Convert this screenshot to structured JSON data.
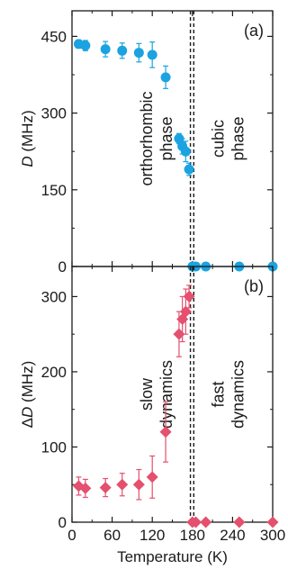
{
  "chart_data": [
    {
      "type": "scatter",
      "panel_label": "(a)",
      "xlabel": "",
      "ylabel_symbol": "D",
      "ylabel_unit": "(MHz)",
      "xlim": [
        0,
        300
      ],
      "ylim": [
        0,
        500
      ],
      "yticks": [
        0,
        150,
        300,
        450
      ],
      "marker": "circle",
      "color": "#1aa3e0",
      "series": [
        {
          "x": [
            10,
            20,
            50,
            75,
            100,
            120,
            140,
            160,
            165,
            170,
            175,
            180,
            185,
            200,
            250,
            300
          ],
          "y": [
            435,
            432,
            425,
            422,
            418,
            414,
            370,
            250,
            235,
            225,
            190,
            0,
            0,
            0,
            0,
            0
          ],
          "err": [
            8,
            10,
            15,
            15,
            18,
            25,
            22,
            10,
            15,
            20,
            12,
            0,
            0,
            0,
            0,
            0
          ]
        }
      ],
      "transitions": [
        177,
        182
      ],
      "annotations": [
        {
          "lines": [
            "orthorhombic",
            "phase"
          ],
          "x": 125,
          "y": 250
        },
        {
          "lines": [
            "cubic",
            "phase"
          ],
          "x": 232,
          "y": 250
        }
      ]
    },
    {
      "type": "scatter",
      "panel_label": "(b)",
      "xlabel": "Temperature (K)",
      "ylabel_symbol": "ΔD",
      "ylabel_unit": "(MHz)",
      "xlim": [
        0,
        300
      ],
      "ylim": [
        0,
        340
      ],
      "yticks": [
        0,
        100,
        200,
        300
      ],
      "xticks": [
        0,
        60,
        120,
        180,
        240,
        300
      ],
      "marker": "diamond",
      "color": "#e4506e",
      "series": [
        {
          "x": [
            10,
            20,
            50,
            75,
            100,
            120,
            140,
            160,
            165,
            170,
            175,
            180,
            185,
            200,
            250,
            300
          ],
          "y": [
            48,
            45,
            46,
            50,
            50,
            60,
            120,
            250,
            270,
            280,
            300,
            0,
            0,
            0,
            0,
            0
          ],
          "err": [
            12,
            12,
            12,
            15,
            20,
            28,
            40,
            30,
            30,
            30,
            15,
            0,
            0,
            0,
            0,
            0
          ]
        }
      ],
      "transitions": [
        177,
        182
      ],
      "annotations": [
        {
          "lines": [
            "slow",
            "dynamics"
          ],
          "x": 125,
          "y": 170
        },
        {
          "lines": [
            "fast",
            "dynamics"
          ],
          "x": 232,
          "y": 170
        }
      ]
    }
  ]
}
